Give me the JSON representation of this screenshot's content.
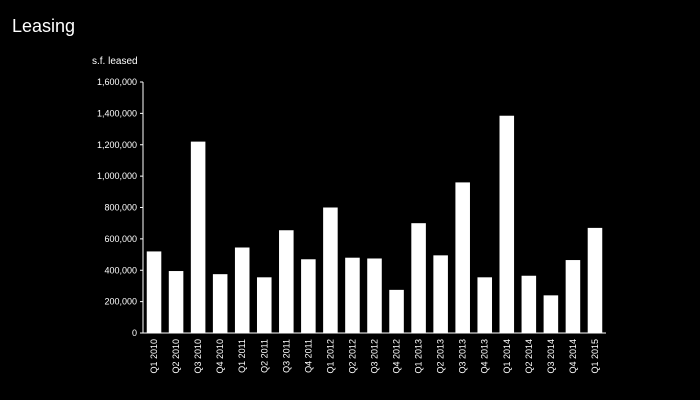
{
  "slide": {
    "title": "Leasing"
  },
  "colors": {
    "background": "#000000",
    "bar": "#ffffff",
    "axis": "#ffffff",
    "text": "#ffffff"
  },
  "chart_data": {
    "type": "bar",
    "title": "",
    "ylabel": "s.f. leased",
    "xlabel": "",
    "ylim": [
      0,
      1600000
    ],
    "yticks": [
      0,
      200000,
      400000,
      600000,
      800000,
      1000000,
      1200000,
      1400000,
      1600000
    ],
    "ytick_labels": [
      "0",
      "200,000",
      "400,000",
      "600,000",
      "800,000",
      "1,000,000",
      "1,200,000",
      "1,400,000",
      "1,600,000"
    ],
    "grid": false,
    "legend": "none",
    "categories": [
      "Q1 2010",
      "Q2 2010",
      "Q3 2010",
      "Q4 2010",
      "Q1 2011",
      "Q2 2011",
      "Q3 2011",
      "Q4 2011",
      "Q1 2012",
      "Q2 2012",
      "Q3 2012",
      "Q4 2012",
      "Q1 2013",
      "Q2 2013",
      "Q3 2013",
      "Q4 2013",
      "Q1 2014",
      "Q2 2014",
      "Q3 2014",
      "Q4 2014",
      "Q1 2015"
    ],
    "values": [
      520000,
      395000,
      1220000,
      375000,
      545000,
      355000,
      655000,
      470000,
      800000,
      480000,
      475000,
      275000,
      700000,
      495000,
      960000,
      355000,
      1385000,
      365000,
      240000,
      465000,
      670000
    ]
  }
}
